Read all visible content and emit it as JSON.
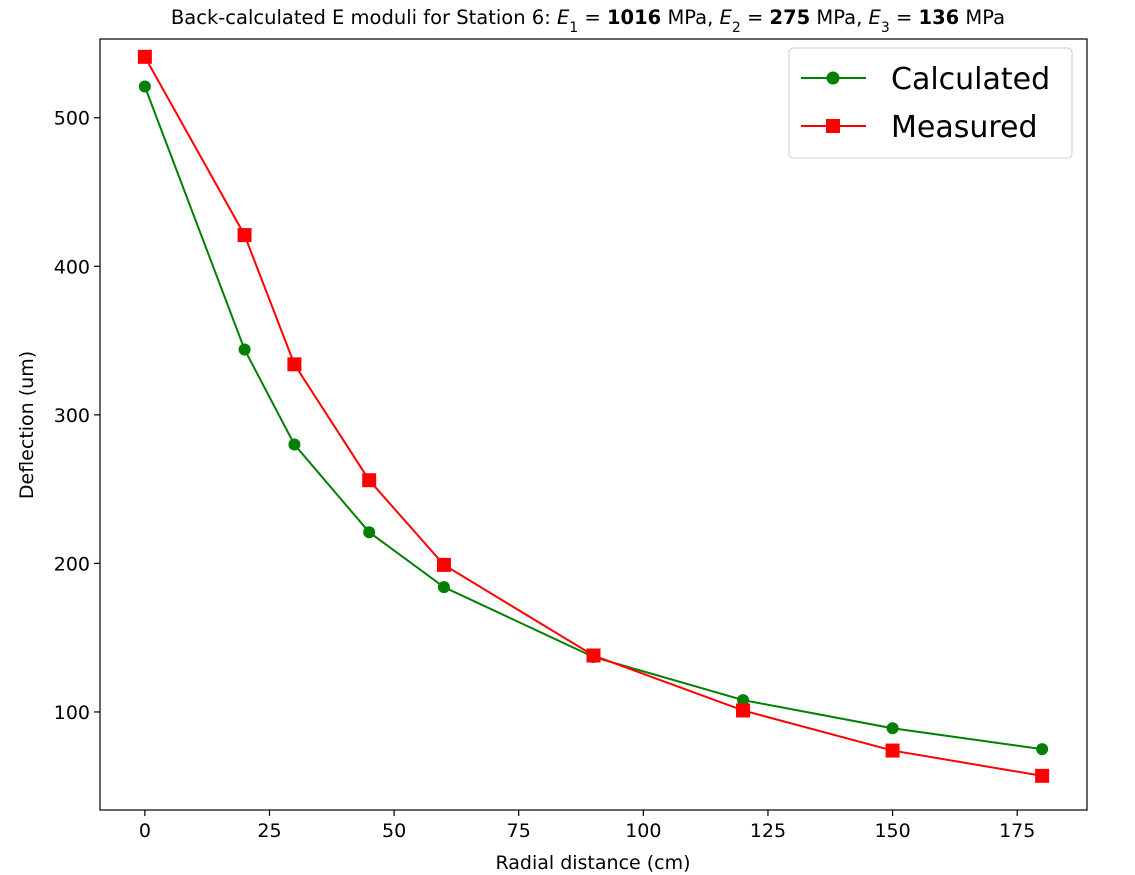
{
  "chart_data": {
    "type": "line",
    "title": {
      "prefix": "Back-calculated E moduli for Station 6: ",
      "moduli": [
        {
          "symbol": "E",
          "sub": "1",
          "value": "1016",
          "unit": "MPa"
        },
        {
          "symbol": "E",
          "sub": "2",
          "value": "275",
          "unit": "MPa"
        },
        {
          "symbol": "E",
          "sub": "3",
          "value": "136",
          "unit": "MPa"
        }
      ]
    },
    "xlabel": "Radial distance (cm)",
    "ylabel": "Deflection (um)",
    "xlim": [
      -9,
      189
    ],
    "ylim": [
      34,
      553
    ],
    "xticks": [
      0,
      25,
      50,
      75,
      100,
      125,
      150,
      175
    ],
    "yticks": [
      100,
      200,
      300,
      400,
      500
    ],
    "grid": false,
    "legend_position": "top-right",
    "x": [
      0,
      20,
      30,
      45,
      60,
      90,
      120,
      150,
      180
    ],
    "series": [
      {
        "name": "Calculated",
        "color": "#008000",
        "marker": "circle",
        "values": [
          521,
          344,
          280,
          221,
          184,
          137,
          108,
          89,
          75
        ]
      },
      {
        "name": "Measured",
        "color": "#ff0000",
        "marker": "square",
        "values": [
          541,
          421,
          334,
          256,
          199,
          138,
          101,
          74,
          57
        ]
      }
    ]
  }
}
